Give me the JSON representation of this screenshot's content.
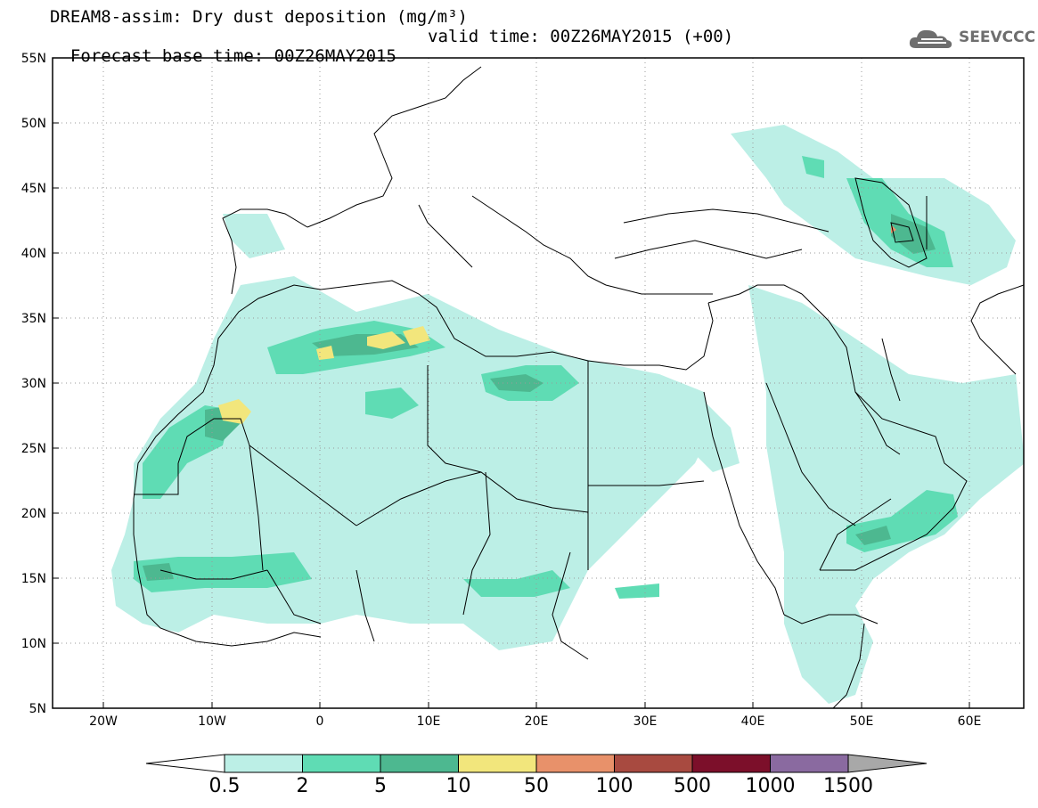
{
  "title": {
    "line1": "DREAM8-assim: Dry dust deposition (mg/m³)",
    "line2_left": "Forecast base time: 00Z26MAY2015",
    "line2_right": "valid time: 00Z26MAY2015 (+00)"
  },
  "logo": {
    "text": "SEEVCCC",
    "icon": "cloud-icon",
    "color": "#6e6e6e"
  },
  "map": {
    "lon_range": [
      -25,
      65
    ],
    "lat_range": [
      5,
      55
    ],
    "lat_ticks": [
      "55N",
      "50N",
      "45N",
      "40N",
      "35N",
      "30N",
      "25N",
      "20N",
      "15N",
      "10N",
      "5N"
    ],
    "lon_ticks": [
      "20W",
      "10W",
      "0",
      "10E",
      "20E",
      "30E",
      "40E",
      "50E",
      "60E"
    ],
    "grid": "dotted"
  },
  "colorbar": {
    "labels": [
      "0.5",
      "2",
      "5",
      "10",
      "50",
      "100",
      "500",
      "1000",
      "1500"
    ],
    "colors": [
      "#ffffff",
      "#bcefe6",
      "#5fdcb4",
      "#4db890",
      "#f2e67c",
      "#e8916a",
      "#a84a40",
      "#7c0f2a",
      "#8a6aa0",
      "#a8a8a8"
    ]
  }
}
